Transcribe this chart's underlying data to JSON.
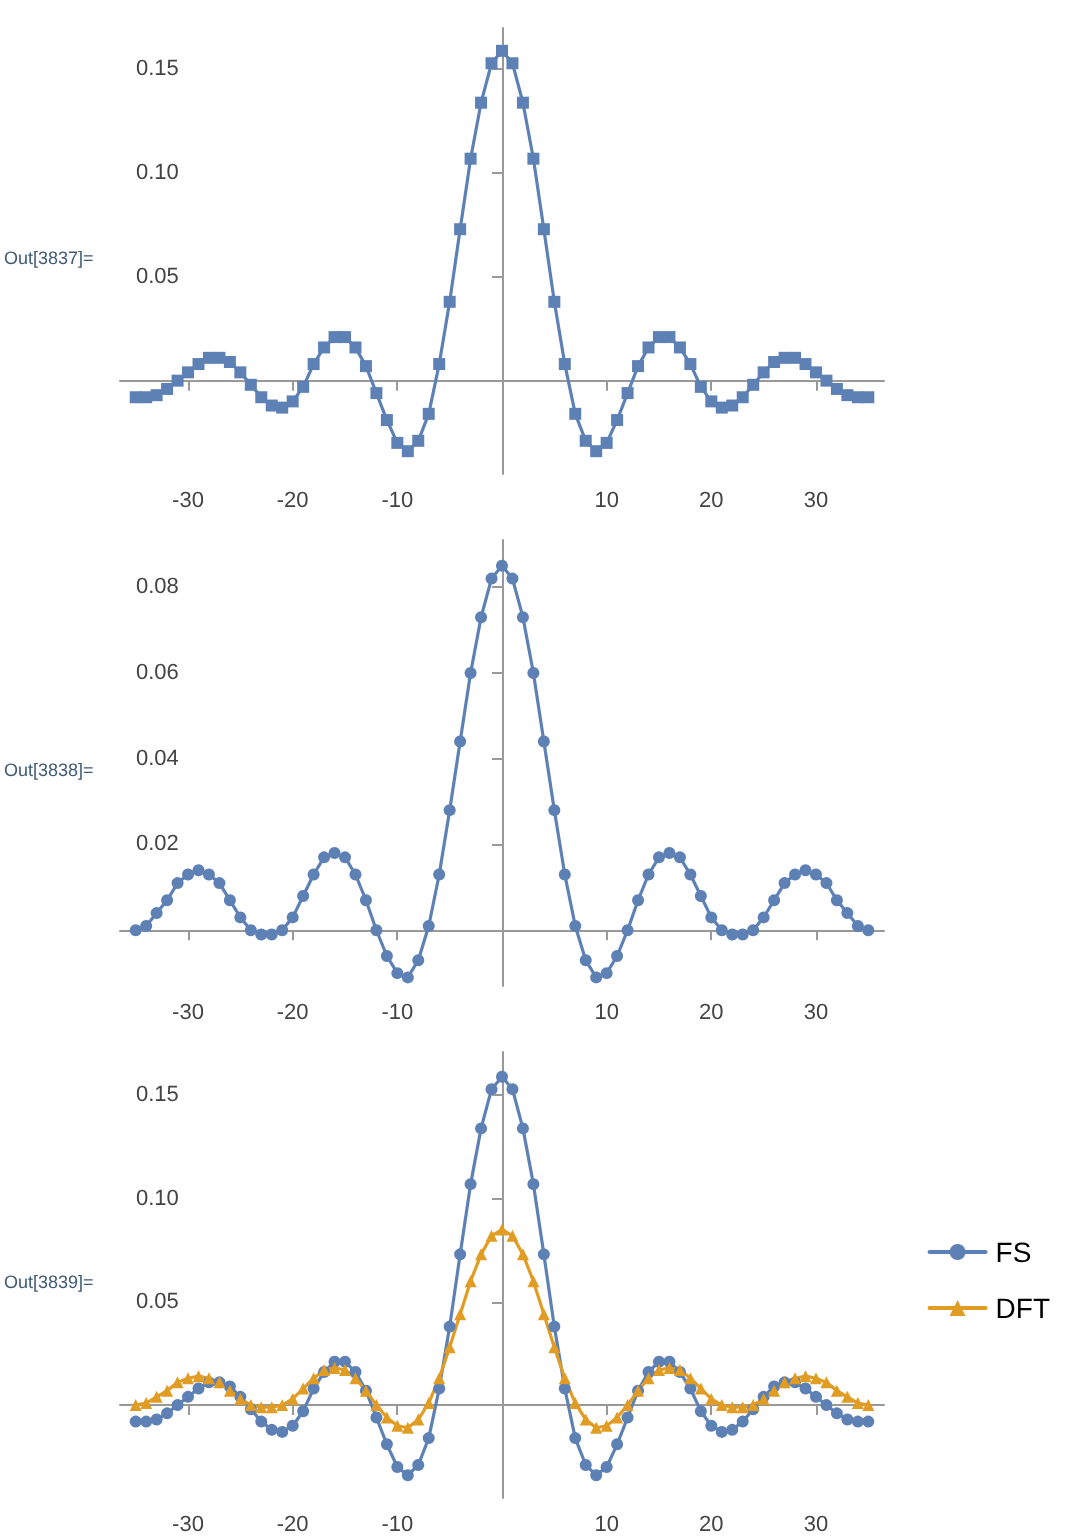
{
  "chart_data": [
    {
      "type": "line",
      "annotations": [
        "Out[3837]="
      ],
      "marker": "square",
      "line_style": "solid",
      "grid": false,
      "legend": false,
      "x": [
        -35,
        -34,
        -33,
        -32,
        -31,
        -30,
        -29,
        -28,
        -27,
        -26,
        -25,
        -24,
        -23,
        -22,
        -21,
        -20,
        -19,
        -18,
        -17,
        -16,
        -15,
        -14,
        -13,
        -12,
        -11,
        -10,
        -9,
        -8,
        -7,
        -6,
        -5,
        -4,
        -3,
        -2,
        -1,
        0,
        1,
        2,
        3,
        4,
        5,
        6,
        7,
        8,
        9,
        10,
        11,
        12,
        13,
        14,
        15,
        16,
        17,
        18,
        19,
        20,
        21,
        22,
        23,
        24,
        25,
        26,
        27,
        28,
        29,
        30,
        31,
        32,
        33,
        34,
        35
      ],
      "xlim": [
        -36.5,
        36.5
      ],
      "xticks": [
        -30,
        -20,
        -10,
        10,
        20,
        30
      ],
      "ylim": [
        -0.045,
        0.17
      ],
      "yticks": [
        {
          "value": 0.05,
          "label": "0.05"
        },
        {
          "value": 0.1,
          "label": "0.10"
        },
        {
          "value": 0.15,
          "label": "0.15"
        }
      ],
      "series": [
        {
          "color": "#5e81b5",
          "values": [
            -0.008,
            -0.008,
            -0.007,
            -0.004,
            0.0,
            0.004,
            0.008,
            0.011,
            0.011,
            0.009,
            0.004,
            -0.002,
            -0.008,
            -0.012,
            -0.013,
            -0.01,
            -0.003,
            0.008,
            0.016,
            0.021,
            0.021,
            0.016,
            0.007,
            -0.006,
            -0.019,
            -0.03,
            -0.034,
            -0.029,
            -0.016,
            0.008,
            0.038,
            0.073,
            0.107,
            0.134,
            0.153,
            0.159,
            0.153,
            0.134,
            0.107,
            0.073,
            0.038,
            0.008,
            -0.016,
            -0.029,
            -0.034,
            -0.03,
            -0.019,
            -0.006,
            0.007,
            0.016,
            0.021,
            0.021,
            0.016,
            0.008,
            -0.003,
            -0.01,
            -0.013,
            -0.012,
            -0.008,
            -0.002,
            0.004,
            0.009,
            0.011,
            0.011,
            0.008,
            0.004,
            0.0,
            -0.004,
            -0.007,
            -0.008,
            -0.008
          ]
        }
      ]
    },
    {
      "type": "line",
      "annotations": [
        "Out[3838]="
      ],
      "marker": "circle",
      "line_style": "solid",
      "grid": false,
      "legend": false,
      "x": [
        -35,
        -34,
        -33,
        -32,
        -31,
        -30,
        -29,
        -28,
        -27,
        -26,
        -25,
        -24,
        -23,
        -22,
        -21,
        -20,
        -19,
        -18,
        -17,
        -16,
        -15,
        -14,
        -13,
        -12,
        -11,
        -10,
        -9,
        -8,
        -7,
        -6,
        -5,
        -4,
        -3,
        -2,
        -1,
        0,
        1,
        2,
        3,
        4,
        5,
        6,
        7,
        8,
        9,
        10,
        11,
        12,
        13,
        14,
        15,
        16,
        17,
        18,
        19,
        20,
        21,
        22,
        23,
        24,
        25,
        26,
        27,
        28,
        29,
        30,
        31,
        32,
        33,
        34,
        35
      ],
      "xlim": [
        -36.5,
        36.5
      ],
      "xticks": [
        -30,
        -20,
        -10,
        10,
        20,
        30
      ],
      "ylim": [
        -0.013,
        0.091
      ],
      "yticks": [
        0.02,
        0.04,
        0.06,
        0.08
      ],
      "series": [
        {
          "color": "#5e81b5",
          "values": [
            0.0,
            0.001,
            0.004,
            0.007,
            0.011,
            0.013,
            0.014,
            0.013,
            0.011,
            0.007,
            0.003,
            0.0,
            -0.001,
            -0.001,
            0.0,
            0.003,
            0.008,
            0.013,
            0.017,
            0.018,
            0.017,
            0.013,
            0.007,
            0.0,
            -0.006,
            -0.01,
            -0.011,
            -0.007,
            0.001,
            0.013,
            0.028,
            0.044,
            0.06,
            0.073,
            0.082,
            0.085,
            0.082,
            0.073,
            0.06,
            0.044,
            0.028,
            0.013,
            0.001,
            -0.007,
            -0.011,
            -0.01,
            -0.006,
            0.0,
            0.007,
            0.013,
            0.017,
            0.018,
            0.017,
            0.013,
            0.008,
            0.003,
            0.0,
            -0.001,
            -0.001,
            0.0,
            0.003,
            0.007,
            0.011,
            0.013,
            0.014,
            0.013,
            0.011,
            0.007,
            0.004,
            0.001,
            0.0
          ]
        }
      ]
    },
    {
      "type": "line",
      "annotations": [
        "Out[3839]="
      ],
      "line_style": "solid",
      "grid": false,
      "legend": "right",
      "x": [
        -35,
        -34,
        -33,
        -32,
        -31,
        -30,
        -29,
        -28,
        -27,
        -26,
        -25,
        -24,
        -23,
        -22,
        -21,
        -20,
        -19,
        -18,
        -17,
        -16,
        -15,
        -14,
        -13,
        -12,
        -11,
        -10,
        -9,
        -8,
        -7,
        -6,
        -5,
        -4,
        -3,
        -2,
        -1,
        0,
        1,
        2,
        3,
        4,
        5,
        6,
        7,
        8,
        9,
        10,
        11,
        12,
        13,
        14,
        15,
        16,
        17,
        18,
        19,
        20,
        21,
        22,
        23,
        24,
        25,
        26,
        27,
        28,
        29,
        30,
        31,
        32,
        33,
        34,
        35
      ],
      "xlim": [
        -36.5,
        36.5
      ],
      "xticks": [
        -30,
        -20,
        -10,
        10,
        20,
        30
      ],
      "ylim": [
        -0.045,
        0.171
      ],
      "yticks": [
        {
          "value": 0.05,
          "label": "0.05"
        },
        {
          "value": 0.1,
          "label": "0.10"
        },
        {
          "value": 0.15,
          "label": "0.15"
        }
      ],
      "series": [
        {
          "name": "FS",
          "color": "#5e81b5",
          "marker": "circle",
          "values": [
            -0.008,
            -0.008,
            -0.007,
            -0.004,
            0.0,
            0.004,
            0.008,
            0.011,
            0.011,
            0.009,
            0.004,
            -0.002,
            -0.008,
            -0.012,
            -0.013,
            -0.01,
            -0.003,
            0.008,
            0.016,
            0.021,
            0.021,
            0.016,
            0.007,
            -0.006,
            -0.019,
            -0.03,
            -0.034,
            -0.029,
            -0.016,
            0.008,
            0.038,
            0.073,
            0.107,
            0.134,
            0.153,
            0.159,
            0.153,
            0.134,
            0.107,
            0.073,
            0.038,
            0.008,
            -0.016,
            -0.029,
            -0.034,
            -0.03,
            -0.019,
            -0.006,
            0.007,
            0.016,
            0.021,
            0.021,
            0.016,
            0.008,
            -0.003,
            -0.01,
            -0.013,
            -0.012,
            -0.008,
            -0.002,
            0.004,
            0.009,
            0.011,
            0.011,
            0.008,
            0.004,
            0.0,
            -0.004,
            -0.007,
            -0.008,
            -0.008
          ]
        },
        {
          "name": "DFT",
          "color": "#e19c24",
          "marker": "triangle",
          "values": [
            0.0,
            0.001,
            0.004,
            0.007,
            0.011,
            0.013,
            0.014,
            0.013,
            0.011,
            0.007,
            0.003,
            0.0,
            -0.001,
            -0.001,
            0.0,
            0.003,
            0.008,
            0.013,
            0.017,
            0.018,
            0.017,
            0.013,
            0.007,
            0.0,
            -0.006,
            -0.01,
            -0.011,
            -0.007,
            0.001,
            0.013,
            0.028,
            0.044,
            0.06,
            0.073,
            0.082,
            0.085,
            0.082,
            0.073,
            0.06,
            0.044,
            0.028,
            0.013,
            0.001,
            -0.007,
            -0.011,
            -0.01,
            -0.006,
            0.0,
            0.007,
            0.013,
            0.017,
            0.018,
            0.017,
            0.013,
            0.008,
            0.003,
            0.0,
            -0.001,
            -0.001,
            0.0,
            0.003,
            0.007,
            0.011,
            0.013,
            0.014,
            0.013,
            0.011,
            0.007,
            0.004,
            0.001,
            0.0
          ]
        }
      ]
    }
  ]
}
